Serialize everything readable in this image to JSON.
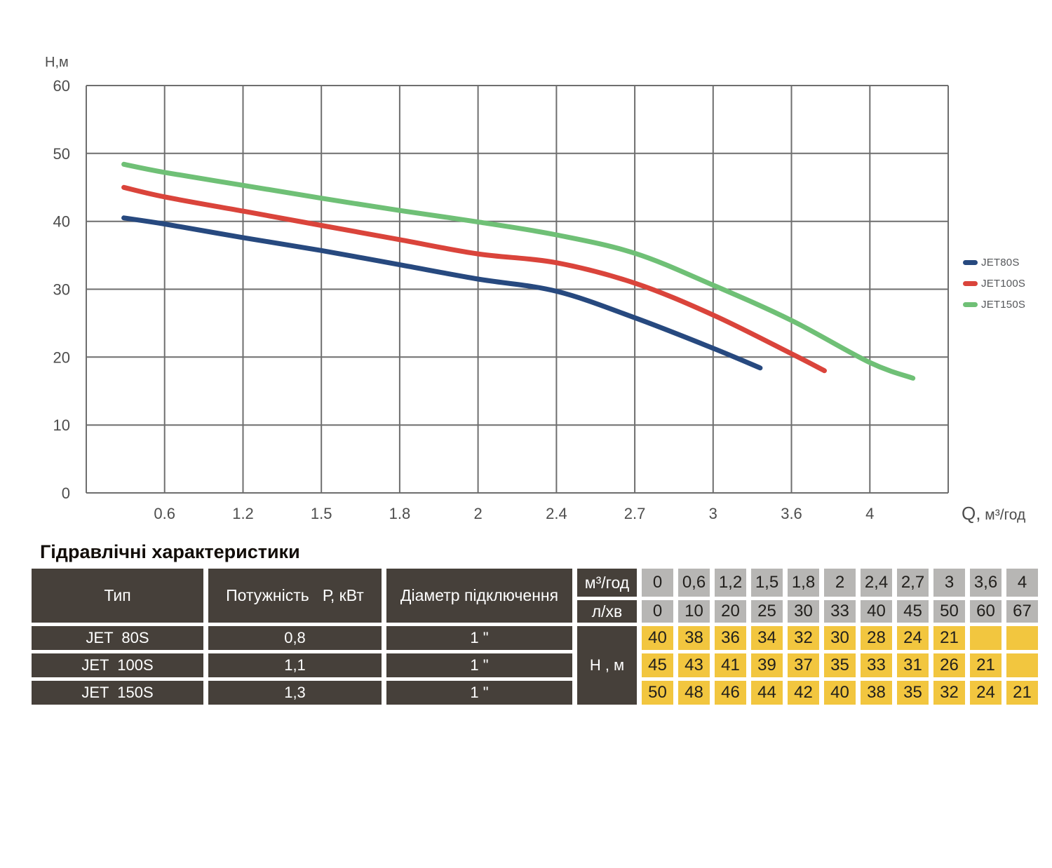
{
  "chart": {
    "y_axis_title": "Н,м",
    "x_axis_title_q": "Q,",
    "x_axis_title_unit": " м³/год",
    "y_ticks": [
      "0",
      "10",
      "20",
      "30",
      "40",
      "50",
      "60"
    ],
    "x_ticks": [
      "0.6",
      "1.2",
      "1.5",
      "1.8",
      "2",
      "2.4",
      "2.7",
      "3",
      "3.6",
      "4"
    ],
    "grid_color": "#6e6e6e",
    "tick_color": "#4d4d4d",
    "legend": [
      {
        "label": "JET80S",
        "color": "#27497f"
      },
      {
        "label": "JET100S",
        "color": "#da443b"
      },
      {
        "label": "JET150S",
        "color": "#6fc076"
      }
    ]
  },
  "chart_data": {
    "type": "line",
    "title": "",
    "xlabel": "Q, м³/год",
    "ylabel": "Н,м",
    "ylim": [
      0,
      60
    ],
    "grid": true,
    "legend_position": "right-outside",
    "x_scale_note": "non-linear categorical axis: gridlines equally spaced at listed Q values, right edge one interval past 4",
    "x_gridline_values": [
      0,
      0.6,
      1.2,
      1.5,
      1.8,
      2,
      2.4,
      2.7,
      3,
      3.6,
      4
    ],
    "series": [
      {
        "name": "JET80S",
        "color": "#27497f",
        "H_m_at_gridlines": [
          40,
          38,
          36,
          34,
          32,
          30,
          28,
          24,
          21,
          null,
          null
        ],
        "curve_points_gridindex_H": [
          [
            0.48,
            40.5
          ],
          [
            1,
            39.6
          ],
          [
            2,
            37.6
          ],
          [
            3,
            35.7
          ],
          [
            4,
            33.6
          ],
          [
            5,
            31.5
          ],
          [
            6,
            29.7
          ],
          [
            7,
            25.8
          ],
          [
            8,
            21.3
          ],
          [
            8.6,
            18.4
          ]
        ]
      },
      {
        "name": "JET100S",
        "color": "#da443b",
        "H_m_at_gridlines": [
          45,
          43,
          41,
          39,
          37,
          35,
          33,
          31,
          26,
          21,
          null
        ],
        "curve_points_gridindex_H": [
          [
            0.48,
            45.0
          ],
          [
            1,
            43.6
          ],
          [
            2,
            41.5
          ],
          [
            3,
            39.4
          ],
          [
            4,
            37.3
          ],
          [
            5,
            35.2
          ],
          [
            6,
            33.9
          ],
          [
            7,
            30.9
          ],
          [
            8,
            26.2
          ],
          [
            9,
            20.5
          ],
          [
            9.42,
            18.0
          ]
        ]
      },
      {
        "name": "JET150S",
        "color": "#6fc076",
        "H_m_at_gridlines": [
          50,
          48,
          46,
          44,
          42,
          40,
          38,
          35,
          32,
          24,
          21
        ],
        "curve_points_gridindex_H": [
          [
            0.48,
            48.4
          ],
          [
            1,
            47.2
          ],
          [
            2,
            45.3
          ],
          [
            3,
            43.4
          ],
          [
            4,
            41.6
          ],
          [
            5,
            39.9
          ],
          [
            6,
            38.0
          ],
          [
            7,
            35.3
          ],
          [
            8,
            30.6
          ],
          [
            9,
            25.4
          ],
          [
            10,
            19.2
          ],
          [
            10.55,
            16.9
          ]
        ]
      }
    ]
  },
  "table": {
    "title": "Гідравлічні характеристики",
    "col_headers": [
      "Тип",
      "Потужність   Р, кВт",
      "Діаметр підключення"
    ],
    "unit_rows": [
      {
        "label": "м³/год",
        "values": [
          "0",
          "0,6",
          "1,2",
          "1,5",
          "1,8",
          "2",
          "2,4",
          "2,7",
          "3",
          "3,6",
          "4"
        ]
      },
      {
        "label": "л/хв",
        "values": [
          "0",
          "10",
          "20",
          "25",
          "30",
          "33",
          "40",
          "45",
          "50",
          "60",
          "67"
        ]
      }
    ],
    "h_column_label": "Н , м",
    "rows": [
      {
        "type": "JET  80S",
        "power": "0,8",
        "diameter": "1 \"",
        "values": [
          "40",
          "38",
          "36",
          "34",
          "32",
          "30",
          "28",
          "24",
          "21",
          "",
          ""
        ]
      },
      {
        "type": "JET  100S",
        "power": "1,1",
        "diameter": "1 \"",
        "values": [
          "45",
          "43",
          "41",
          "39",
          "37",
          "35",
          "33",
          "31",
          "26",
          "21",
          ""
        ]
      },
      {
        "type": "JET  150S",
        "power": "1,3",
        "diameter": "1 \"",
        "values": [
          "50",
          "48",
          "46",
          "44",
          "42",
          "40",
          "38",
          "35",
          "32",
          "24",
          "21"
        ]
      }
    ],
    "colors": {
      "header_bg": "#46403a",
      "gray_cell_bg": "#b7b6b4",
      "value_cell_bg": "#f2c63f",
      "cell_text": "#22201d"
    }
  }
}
